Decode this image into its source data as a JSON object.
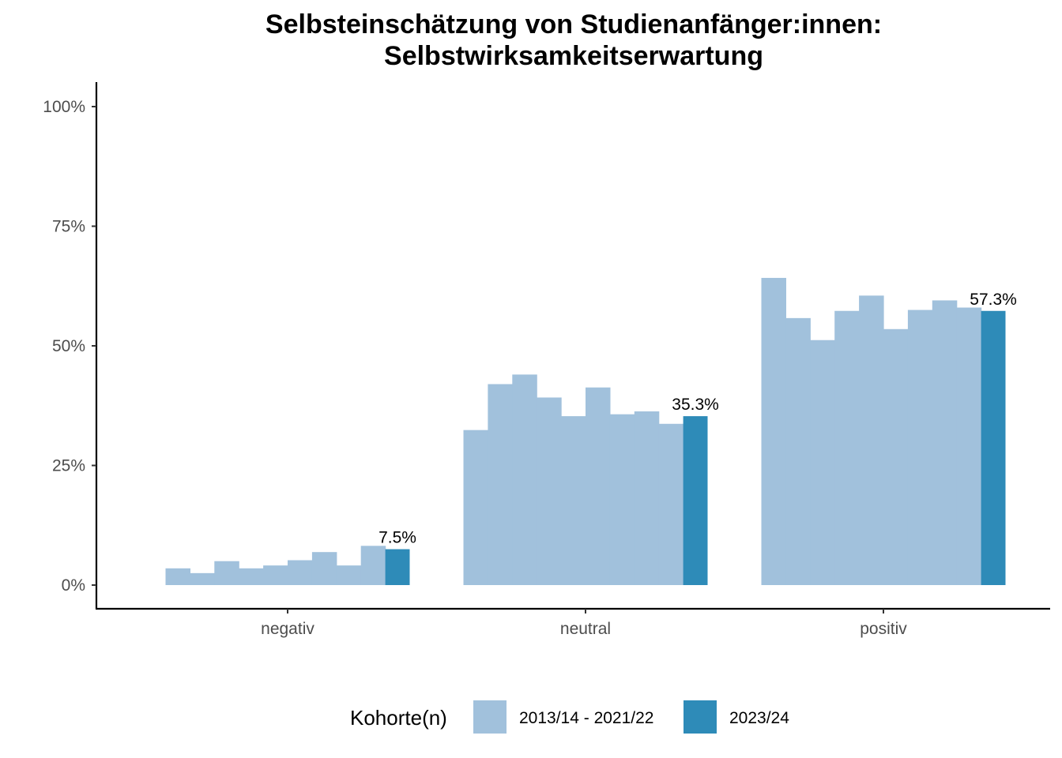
{
  "chart_data": {
    "type": "bar",
    "title": "Selbsteinschätzung von Studienanfänger:innen:",
    "subtitle": "Selbstwirksamkeitserwartung",
    "xlabel": "",
    "ylabel": "",
    "ylim": [
      0,
      1.0
    ],
    "yticks": [
      0,
      0.25,
      0.5,
      0.75,
      1.0
    ],
    "ytick_labels": [
      "0%",
      "25%",
      "50%",
      "75%",
      "100%"
    ],
    "categories": [
      "negativ",
      "neutral",
      "positiv"
    ],
    "grid": false,
    "legend": {
      "title": "Kohorte(n)",
      "position": "bottom",
      "entries": [
        {
          "label": "2013/14 - 2021/22",
          "color": "#a1c1dc"
        },
        {
          "label": "2023/24",
          "color": "#2e8bb8"
        }
      ]
    },
    "series": [
      {
        "name": "2013/14 - 2021/22",
        "color": "#a1c1dc",
        "values": [
          [
            0.035,
            0.025,
            0.05,
            0.035,
            0.041,
            0.052,
            0.069,
            0.041,
            0.082
          ],
          [
            0.324,
            0.42,
            0.44,
            0.392,
            0.353,
            0.413,
            0.357,
            0.363,
            0.337
          ],
          [
            0.642,
            0.558,
            0.512,
            0.573,
            0.605,
            0.535,
            0.575,
            0.595,
            0.58
          ]
        ]
      },
      {
        "name": "2023/24",
        "color": "#2e8bb8",
        "values": [
          0.075,
          0.353,
          0.573
        ],
        "labels": [
          "7.5%",
          "35.3%",
          "57.3%"
        ]
      }
    ]
  }
}
